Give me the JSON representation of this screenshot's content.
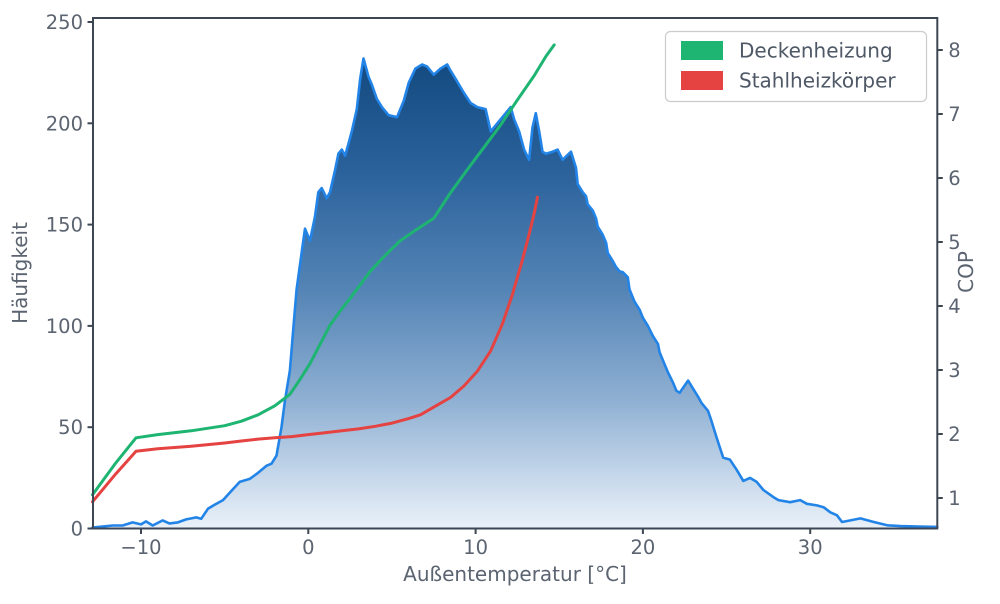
{
  "chart_data": {
    "type": "area",
    "title": "",
    "x_axis": {
      "label": "Außentemperatur [°C]",
      "ticks": [
        -10,
        0,
        10,
        20,
        30
      ],
      "min": -12.9,
      "max": 37.6
    },
    "y_left_axis": {
      "label": "Häufigkeit",
      "ticks": [
        0,
        50,
        100,
        150,
        200,
        250
      ],
      "min": 0,
      "max": 250
    },
    "y_right_axis": {
      "label": "COP",
      "ticks": [
        1,
        2,
        3,
        4,
        5,
        6,
        7,
        8
      ],
      "min": 1,
      "max": 8
    },
    "legend": {
      "position": "top-right",
      "entries": [
        {
          "label": "Deckenheizung",
          "color": "#1eb472"
        },
        {
          "label": "Stahlheizkörper",
          "color": "#e54242"
        }
      ]
    },
    "histogram": {
      "name": "Häufigkeit",
      "axis": "left",
      "line_color": "#2384e7",
      "fill_gradient_top": "#12497e",
      "fill_gradient_bottom": "#eaf1f9",
      "points": [
        [
          -12.9,
          0.5
        ],
        [
          -12.3,
          1
        ],
        [
          -11.7,
          1.5
        ],
        [
          -11.1,
          1.5
        ],
        [
          -10.5,
          3
        ],
        [
          -10.0,
          2
        ],
        [
          -9.7,
          3.5
        ],
        [
          -9.3,
          1.5
        ],
        [
          -8.7,
          4
        ],
        [
          -8.3,
          2.5
        ],
        [
          -7.8,
          3
        ],
        [
          -7.3,
          4.5
        ],
        [
          -6.7,
          5.5
        ],
        [
          -6.4,
          4.8
        ],
        [
          -6.0,
          9.7
        ],
        [
          -5.6,
          11.7
        ],
        [
          -5.1,
          14
        ],
        [
          -4.6,
          18.5
        ],
        [
          -4.1,
          23
        ],
        [
          -3.5,
          24.5
        ],
        [
          -3.0,
          27.5
        ],
        [
          -2.5,
          31
        ],
        [
          -2.2,
          32
        ],
        [
          -1.9,
          36
        ],
        [
          -1.6,
          50
        ],
        [
          -1.4,
          63
        ],
        [
          -1.1,
          78
        ],
        [
          -0.9,
          98
        ],
        [
          -0.7,
          118
        ],
        [
          -0.4,
          136
        ],
        [
          -0.2,
          148
        ],
        [
          0.1,
          142
        ],
        [
          0.4,
          154
        ],
        [
          0.6,
          166
        ],
        [
          0.8,
          168
        ],
        [
          1.1,
          163
        ],
        [
          1.3,
          166
        ],
        [
          1.6,
          177
        ],
        [
          1.8,
          185
        ],
        [
          2.0,
          187
        ],
        [
          2.2,
          184
        ],
        [
          2.4,
          190
        ],
        [
          2.6,
          196
        ],
        [
          2.9,
          207
        ],
        [
          3.1,
          222
        ],
        [
          3.3,
          232
        ],
        [
          3.6,
          223
        ],
        [
          3.8,
          219
        ],
        [
          4.1,
          212
        ],
        [
          4.4,
          208
        ],
        [
          4.8,
          204
        ],
        [
          5.3,
          203
        ],
        [
          5.7,
          211
        ],
        [
          6.0,
          220
        ],
        [
          6.4,
          227
        ],
        [
          6.8,
          229
        ],
        [
          7.1,
          228
        ],
        [
          7.5,
          224
        ],
        [
          7.9,
          227
        ],
        [
          8.3,
          229
        ],
        [
          8.5,
          226
        ],
        [
          8.8,
          222
        ],
        [
          9.3,
          215
        ],
        [
          9.7,
          210
        ],
        [
          10.1,
          208
        ],
        [
          10.6,
          207
        ],
        [
          10.9,
          196
        ],
        [
          11.2,
          199
        ],
        [
          11.5,
          202
        ],
        [
          11.8,
          205
        ],
        [
          12.1,
          208
        ],
        [
          12.3,
          202
        ],
        [
          12.6,
          196
        ],
        [
          12.9,
          187
        ],
        [
          13.2,
          182
        ],
        [
          13.4,
          198
        ],
        [
          13.6,
          205
        ],
        [
          13.8,
          196
        ],
        [
          14.0,
          186
        ],
        [
          14.2,
          185
        ],
        [
          14.6,
          186
        ],
        [
          14.9,
          187
        ],
        [
          15.2,
          182
        ],
        [
          15.7,
          186
        ],
        [
          16.0,
          178
        ],
        [
          16.1,
          170
        ],
        [
          16.4,
          166
        ],
        [
          16.6,
          164
        ],
        [
          16.7,
          160
        ],
        [
          17.0,
          157
        ],
        [
          17.2,
          153
        ],
        [
          17.3,
          149
        ],
        [
          17.6,
          145
        ],
        [
          17.8,
          141
        ],
        [
          17.9,
          136
        ],
        [
          18.2,
          132
        ],
        [
          18.4,
          129
        ],
        [
          18.6,
          127
        ],
        [
          18.8,
          126.5
        ],
        [
          19.1,
          124
        ],
        [
          19.2,
          118
        ],
        [
          19.5,
          112
        ],
        [
          19.8,
          108
        ],
        [
          20.0,
          104
        ],
        [
          20.3,
          100
        ],
        [
          20.6,
          95
        ],
        [
          20.9,
          91
        ],
        [
          21.0,
          87
        ],
        [
          21.3,
          81
        ],
        [
          21.5,
          77
        ],
        [
          21.8,
          72
        ],
        [
          22.0,
          68
        ],
        [
          22.2,
          67
        ],
        [
          22.4,
          69.5
        ],
        [
          22.7,
          73
        ],
        [
          23.0,
          69
        ],
        [
          23.3,
          65
        ],
        [
          23.5,
          62
        ],
        [
          23.9,
          58
        ],
        [
          24.1,
          53
        ],
        [
          24.4,
          45
        ],
        [
          24.8,
          35
        ],
        [
          25.2,
          34
        ],
        [
          25.6,
          29
        ],
        [
          26.0,
          23.5
        ],
        [
          26.4,
          25
        ],
        [
          26.8,
          23
        ],
        [
          27.2,
          19
        ],
        [
          27.8,
          15.5
        ],
        [
          28.1,
          14
        ],
        [
          28.8,
          13
        ],
        [
          29.4,
          14
        ],
        [
          29.8,
          12.2
        ],
        [
          30.4,
          11.4
        ],
        [
          30.8,
          10.5
        ],
        [
          31.2,
          8
        ],
        [
          31.6,
          6.5
        ],
        [
          31.9,
          3.2
        ],
        [
          32.4,
          4
        ],
        [
          33.0,
          5
        ],
        [
          33.8,
          3.2
        ],
        [
          34.6,
          1.6
        ],
        [
          35.4,
          1.2
        ],
        [
          36.5,
          1
        ],
        [
          37.6,
          0.8
        ]
      ]
    },
    "series": [
      {
        "name": "Deckenheizung",
        "axis": "right",
        "color": "#1eb472",
        "points": [
          [
            -12.9,
            1.05
          ],
          [
            -11.5,
            1.55
          ],
          [
            -10.3,
            1.94
          ],
          [
            -9.0,
            1.99
          ],
          [
            -7.0,
            2.05
          ],
          [
            -5.0,
            2.13
          ],
          [
            -4.0,
            2.2
          ],
          [
            -3.0,
            2.3
          ],
          [
            -2.0,
            2.44
          ],
          [
            -1.1,
            2.62
          ],
          [
            -0.5,
            2.85
          ],
          [
            0.1,
            3.1
          ],
          [
            0.7,
            3.4
          ],
          [
            1.3,
            3.7
          ],
          [
            1.9,
            3.92
          ],
          [
            2.5,
            4.12
          ],
          [
            3.1,
            4.33
          ],
          [
            3.7,
            4.54
          ],
          [
            4.3,
            4.71
          ],
          [
            4.9,
            4.87
          ],
          [
            5.5,
            5.02
          ],
          [
            6.5,
            5.2
          ],
          [
            7.5,
            5.37
          ],
          [
            8.5,
            5.77
          ],
          [
            9.5,
            6.13
          ],
          [
            10.5,
            6.48
          ],
          [
            11.5,
            6.83
          ],
          [
            12.5,
            7.22
          ],
          [
            13.5,
            7.6
          ],
          [
            14.2,
            7.9
          ],
          [
            14.7,
            8.08
          ]
        ]
      },
      {
        "name": "Stahlheizkörper",
        "axis": "right",
        "color": "#e54242",
        "points": [
          [
            -12.9,
            0.94
          ],
          [
            -11.5,
            1.38
          ],
          [
            -10.3,
            1.73
          ],
          [
            -9.0,
            1.77
          ],
          [
            -7.0,
            1.81
          ],
          [
            -5.0,
            1.86
          ],
          [
            -4.0,
            1.89
          ],
          [
            -3.0,
            1.92
          ],
          [
            -2.0,
            1.94
          ],
          [
            -1.0,
            1.96
          ],
          [
            0.0,
            1.99
          ],
          [
            1.0,
            2.02
          ],
          [
            2.0,
            2.05
          ],
          [
            3.0,
            2.08
          ],
          [
            4.0,
            2.12
          ],
          [
            5.0,
            2.17
          ],
          [
            6.0,
            2.24
          ],
          [
            6.7,
            2.3
          ],
          [
            7.5,
            2.42
          ],
          [
            8.5,
            2.57
          ],
          [
            9.3,
            2.75
          ],
          [
            10.1,
            2.98
          ],
          [
            10.9,
            3.3
          ],
          [
            11.6,
            3.72
          ],
          [
            12.2,
            4.18
          ],
          [
            12.8,
            4.72
          ],
          [
            13.2,
            5.12
          ],
          [
            13.5,
            5.45
          ],
          [
            13.7,
            5.7
          ]
        ]
      }
    ],
    "style": {
      "spine_color": "#3d4754",
      "tick_label_color": "#5b6470",
      "legend_border_color": "#cccccc",
      "background": "#ffffff"
    }
  }
}
